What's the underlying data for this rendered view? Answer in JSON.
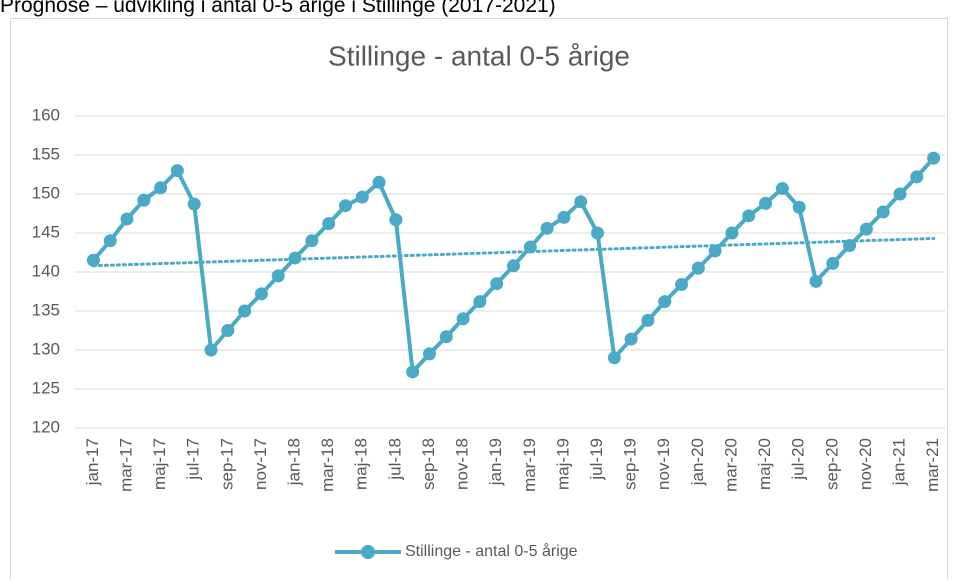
{
  "heading": "Prognose – udvikling i antal 0-5 årige i Stillinge (2017-2021)",
  "chart_data": {
    "type": "line",
    "title": "Stillinge - antal 0-5 årige",
    "categories": [
      "jan-17",
      null,
      "mar-17",
      null,
      "maj-17",
      null,
      "jul-17",
      null,
      "sep-17",
      null,
      "nov-17",
      null,
      "jan-18",
      null,
      "mar-18",
      null,
      "maj-18",
      null,
      "jul-18",
      null,
      "sep-18",
      null,
      "nov-18",
      null,
      "jan-19",
      null,
      "mar-19",
      null,
      "maj-19",
      null,
      "jul-19",
      null,
      "sep-19",
      null,
      "nov-19",
      null,
      "jan-20",
      null,
      "mar-20",
      null,
      "maj-20",
      null,
      "jul-20",
      null,
      "sep-20",
      null,
      "nov-20",
      null,
      "jan-21",
      null,
      "mar-21"
    ],
    "series": [
      {
        "name": "Stillinge - antal 0-5 årige",
        "color": "#4aaac6",
        "values": [
          141.5,
          144,
          146.8,
          149.2,
          150.8,
          153,
          148.7,
          130,
          132.5,
          135,
          137.2,
          139.5,
          141.8,
          144,
          146.2,
          148.5,
          149.6,
          151.5,
          146.7,
          127.2,
          129.5,
          131.7,
          134,
          136.2,
          138.5,
          140.8,
          143.2,
          145.6,
          147,
          149,
          145,
          129,
          131.4,
          133.8,
          136.2,
          138.4,
          140.5,
          142.7,
          145,
          147.2,
          148.8,
          150.7,
          148.3,
          138.8,
          141.1,
          143.4,
          145.5,
          147.7,
          150,
          152.2,
          154.6
        ]
      }
    ],
    "trendline": {
      "start": 140.8,
      "end": 144.3
    },
    "ylim": [
      120,
      160
    ],
    "yticks": [
      120,
      125,
      130,
      135,
      140,
      145,
      150,
      155,
      160
    ],
    "grid": true,
    "legend": "bottom"
  }
}
